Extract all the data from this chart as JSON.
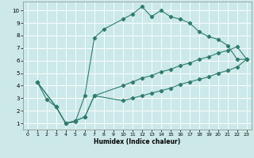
{
  "xlabel": "Humidex (Indice chaleur)",
  "bg_color": "#cce8e8",
  "grid_color": "#ffffff",
  "line_color": "#2d7d6e",
  "xlim": [
    -0.5,
    23.5
  ],
  "ylim": [
    0.5,
    10.7
  ],
  "xticks": [
    0,
    1,
    2,
    3,
    4,
    5,
    6,
    7,
    8,
    9,
    10,
    11,
    12,
    13,
    14,
    15,
    16,
    17,
    18,
    19,
    20,
    21,
    22,
    23
  ],
  "yticks": [
    1,
    2,
    3,
    4,
    5,
    6,
    7,
    8,
    9,
    10
  ],
  "line1_x": [
    1,
    2,
    3,
    4,
    5,
    6,
    7,
    8,
    10,
    11,
    12,
    13,
    14,
    15,
    16,
    17,
    18,
    19,
    20,
    21,
    22,
    23
  ],
  "line1_y": [
    4.3,
    2.9,
    2.3,
    1.0,
    1.1,
    3.2,
    7.8,
    8.5,
    9.3,
    9.7,
    10.3,
    9.5,
    10.0,
    9.5,
    9.3,
    9.0,
    8.3,
    7.9,
    7.7,
    7.2,
    6.1,
    6.1
  ],
  "line2_x": [
    1,
    3,
    4,
    5,
    6,
    7,
    10,
    11,
    12,
    13,
    14,
    15,
    16,
    17,
    18,
    19,
    20,
    21,
    22,
    23
  ],
  "line2_y": [
    4.3,
    2.3,
    1.0,
    1.2,
    1.5,
    3.2,
    4.0,
    4.3,
    4.6,
    4.8,
    5.1,
    5.3,
    5.6,
    5.8,
    6.1,
    6.3,
    6.6,
    6.8,
    7.1,
    6.1
  ],
  "line3_x": [
    1,
    3,
    4,
    5,
    6,
    7,
    10,
    11,
    12,
    13,
    14,
    15,
    16,
    17,
    18,
    19,
    20,
    21,
    22,
    23
  ],
  "line3_y": [
    4.3,
    2.3,
    1.0,
    1.2,
    1.5,
    3.2,
    2.8,
    3.0,
    3.2,
    3.4,
    3.6,
    3.8,
    4.1,
    4.3,
    4.5,
    4.7,
    5.0,
    5.2,
    5.5,
    6.1
  ]
}
